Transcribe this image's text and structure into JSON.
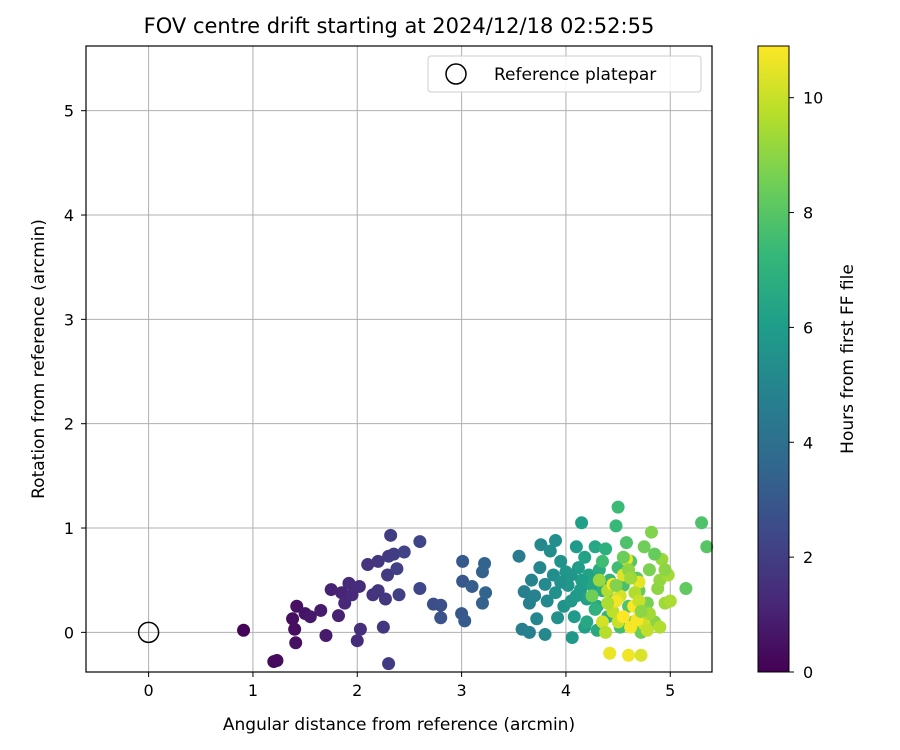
{
  "chart_data": {
    "type": "scatter",
    "title": "FOV centre drift starting at 2024/12/18 02:52:55",
    "xlabel": "Angular distance from reference (arcmin)",
    "ylabel": "Rotation from reference (arcmin)",
    "xlim": [
      -0.6,
      5.4
    ],
    "ylim": [
      -0.38,
      5.62
    ],
    "xticks": [
      0,
      1,
      2,
      3,
      4,
      5
    ],
    "yticks": [
      0,
      1,
      2,
      3,
      4,
      5
    ],
    "grid": true,
    "legend": {
      "placement": "top-right",
      "entries": [
        "Reference platepar"
      ]
    },
    "reference_point": {
      "name": "Reference platepar",
      "x": 0,
      "y": 0
    },
    "colorbar": {
      "label": "Hours from first FF file",
      "colormap": "viridis",
      "range": [
        0,
        10.9
      ],
      "ticks": [
        0,
        2,
        4,
        6,
        8,
        10
      ],
      "stops": [
        "#440154",
        "#482878",
        "#3e4989",
        "#31688e",
        "#26828e",
        "#1f9e89",
        "#35b779",
        "#6ece58",
        "#b5de2b",
        "#fde725"
      ]
    },
    "points": [
      [
        0.91,
        0.02,
        0.1
      ],
      [
        1.2,
        -0.28,
        0.3
      ],
      [
        1.23,
        -0.27,
        0.3
      ],
      [
        1.38,
        0.13,
        0.4
      ],
      [
        1.4,
        0.03,
        0.4
      ],
      [
        1.41,
        -0.1,
        0.5
      ],
      [
        1.42,
        0.25,
        0.5
      ],
      [
        1.5,
        0.18,
        0.6
      ],
      [
        1.55,
        0.15,
        0.7
      ],
      [
        1.65,
        0.21,
        0.8
      ],
      [
        1.7,
        -0.03,
        0.8
      ],
      [
        1.75,
        0.41,
        1.0
      ],
      [
        1.82,
        0.16,
        1.0
      ],
      [
        1.85,
        0.38,
        1.1
      ],
      [
        1.88,
        0.28,
        1.2
      ],
      [
        1.92,
        0.47,
        1.3
      ],
      [
        1.95,
        0.36,
        1.3
      ],
      [
        2.0,
        -0.08,
        1.4
      ],
      [
        2.02,
        0.44,
        1.4
      ],
      [
        2.03,
        0.03,
        1.5
      ],
      [
        2.1,
        0.65,
        1.6
      ],
      [
        2.15,
        0.36,
        1.6
      ],
      [
        2.2,
        0.4,
        1.7
      ],
      [
        2.2,
        0.68,
        1.7
      ],
      [
        2.25,
        0.05,
        1.8
      ],
      [
        2.27,
        0.32,
        1.8
      ],
      [
        2.29,
        0.55,
        1.9
      ],
      [
        2.3,
        -0.3,
        1.9
      ],
      [
        2.3,
        0.73,
        1.9
      ],
      [
        2.32,
        0.93,
        2.0
      ],
      [
        2.35,
        0.75,
        2.0
      ],
      [
        2.38,
        0.61,
        2.1
      ],
      [
        2.4,
        0.36,
        2.1
      ],
      [
        2.45,
        0.77,
        2.2
      ],
      [
        2.6,
        0.87,
        2.3
      ],
      [
        2.6,
        0.42,
        2.4
      ],
      [
        2.73,
        0.27,
        2.6
      ],
      [
        2.8,
        0.26,
        2.7
      ],
      [
        2.8,
        0.14,
        2.8
      ],
      [
        3.0,
        0.18,
        3.0
      ],
      [
        3.01,
        0.49,
        3.0
      ],
      [
        3.01,
        0.68,
        3.1
      ],
      [
        3.03,
        0.11,
        3.1
      ],
      [
        3.1,
        0.44,
        3.2
      ],
      [
        3.2,
        0.28,
        3.4
      ],
      [
        3.2,
        0.58,
        3.4
      ],
      [
        3.22,
        0.66,
        3.5
      ],
      [
        3.23,
        0.38,
        3.5
      ],
      [
        3.55,
        0.73,
        4.5
      ],
      [
        3.58,
        0.03,
        4.6
      ],
      [
        3.6,
        0.39,
        4.7
      ],
      [
        3.65,
        0.0,
        4.8
      ],
      [
        3.65,
        0.28,
        4.8
      ],
      [
        3.67,
        0.5,
        4.9
      ],
      [
        3.7,
        0.35,
        4.9
      ],
      [
        3.72,
        0.13,
        5.0
      ],
      [
        3.75,
        0.62,
        5.0
      ],
      [
        3.76,
        0.84,
        5.1
      ],
      [
        3.8,
        -0.02,
        5.1
      ],
      [
        3.8,
        0.46,
        5.2
      ],
      [
        3.82,
        0.3,
        5.2
      ],
      [
        3.85,
        0.78,
        5.3
      ],
      [
        3.88,
        0.55,
        5.4
      ],
      [
        3.9,
        0.88,
        5.4
      ],
      [
        3.9,
        0.38,
        5.5
      ],
      [
        3.92,
        0.14,
        5.5
      ],
      [
        3.95,
        0.68,
        5.6
      ],
      [
        3.98,
        0.25,
        5.6
      ],
      [
        4.0,
        0.58,
        5.7
      ],
      [
        4.02,
        0.45,
        5.7
      ],
      [
        4.05,
        0.3,
        5.8
      ],
      [
        4.06,
        -0.05,
        5.8
      ],
      [
        4.08,
        0.15,
        5.9
      ],
      [
        4.1,
        0.82,
        5.9
      ],
      [
        4.12,
        0.62,
        6.0
      ],
      [
        4.14,
        0.41,
        6.0
      ],
      [
        4.15,
        1.05,
        6.1
      ],
      [
        4.18,
        0.05,
        6.2
      ],
      [
        4.2,
        0.32,
        6.2
      ],
      [
        4.22,
        0.55,
        6.3
      ],
      [
        4.25,
        0.45,
        6.4
      ],
      [
        4.28,
        0.82,
        6.5
      ],
      [
        4.3,
        0.25,
        6.6
      ],
      [
        4.3,
        0.02,
        6.6
      ],
      [
        4.32,
        0.6,
        6.7
      ],
      [
        4.35,
        0.4,
        6.8
      ],
      [
        4.38,
        0.8,
        6.9
      ],
      [
        4.4,
        0.15,
        7.0
      ],
      [
        4.42,
        0.5,
        7.1
      ],
      [
        4.45,
        0.3,
        7.2
      ],
      [
        4.48,
        1.02,
        7.3
      ],
      [
        4.5,
        1.2,
        7.4
      ],
      [
        4.5,
        0.62,
        7.5
      ],
      [
        4.52,
        0.05,
        7.6
      ],
      [
        4.55,
        0.45,
        7.7
      ],
      [
        4.58,
        0.86,
        7.8
      ],
      [
        4.6,
        0.25,
        7.9
      ],
      [
        4.62,
        0.68,
        8.0
      ],
      [
        4.65,
        0.1,
        8.1
      ],
      [
        4.68,
        0.52,
        8.2
      ],
      [
        4.7,
        0.4,
        8.3
      ],
      [
        4.72,
        0.0,
        8.4
      ],
      [
        4.75,
        0.82,
        8.5
      ],
      [
        4.78,
        0.28,
        8.6
      ],
      [
        4.8,
        0.6,
        8.7
      ],
      [
        4.82,
        0.96,
        8.8
      ],
      [
        4.85,
        0.1,
        8.9
      ],
      [
        4.88,
        0.42,
        9.0
      ],
      [
        4.9,
        0.5,
        9.1
      ],
      [
        4.92,
        0.7,
        9.2
      ],
      [
        4.95,
        0.28,
        9.3
      ],
      [
        4.98,
        0.55,
        9.4
      ],
      [
        5.15,
        0.42,
        8.2
      ],
      [
        5.3,
        1.05,
        7.8
      ],
      [
        5.35,
        0.82,
        8.0
      ],
      [
        4.4,
        0.4,
        9.6
      ],
      [
        4.45,
        0.2,
        9.8
      ],
      [
        4.5,
        0.1,
        10.0
      ],
      [
        4.52,
        0.35,
        10.2
      ],
      [
        4.55,
        0.55,
        10.4
      ],
      [
        4.58,
        0.7,
        10.6
      ],
      [
        4.6,
        -0.22,
        10.7
      ],
      [
        4.62,
        0.05,
        10.8
      ],
      [
        4.65,
        0.25,
        10.9
      ],
      [
        4.7,
        0.48,
        10.5
      ],
      [
        4.72,
        -0.22,
        10.3
      ],
      [
        4.75,
        0.08,
        10.1
      ],
      [
        4.78,
        0.02,
        9.9
      ],
      [
        4.42,
        -0.2,
        10.6
      ],
      [
        4.45,
        0.46,
        10.8
      ],
      [
        4.48,
        0.3,
        10.7
      ],
      [
        4.55,
        0.15,
        10.9
      ],
      [
        4.35,
        0.1,
        10.2
      ],
      [
        4.38,
        0.0,
        9.7
      ],
      [
        4.68,
        0.12,
        10.8
      ],
      [
        4.8,
        0.18,
        9.4
      ],
      [
        4.25,
        0.35,
        8.5
      ],
      [
        4.32,
        0.5,
        9.2
      ],
      [
        4.6,
        0.6,
        9.0
      ],
      [
        4.66,
        0.38,
        9.6
      ],
      [
        4.7,
        0.3,
        10.0
      ],
      [
        4.4,
        0.28,
        9.5
      ],
      [
        4.2,
        0.1,
        6.5
      ],
      [
        4.28,
        0.22,
        7.0
      ],
      [
        4.15,
        0.5,
        6.1
      ],
      [
        4.1,
        0.35,
        5.9
      ],
      [
        4.05,
        0.55,
        5.7
      ],
      [
        3.95,
        0.48,
        5.5
      ],
      [
        4.18,
        0.72,
        6.3
      ],
      [
        4.35,
        0.68,
        7.5
      ],
      [
        4.48,
        0.45,
        8.8
      ],
      [
        4.55,
        0.72,
        8.4
      ],
      [
        4.62,
        0.52,
        9.3
      ],
      [
        4.72,
        0.2,
        9.0
      ],
      [
        4.85,
        0.75,
        8.3
      ],
      [
        4.9,
        0.05,
        9.6
      ],
      [
        4.95,
        0.6,
        9.0
      ],
      [
        5.0,
        0.3,
        9.5
      ]
    ]
  }
}
